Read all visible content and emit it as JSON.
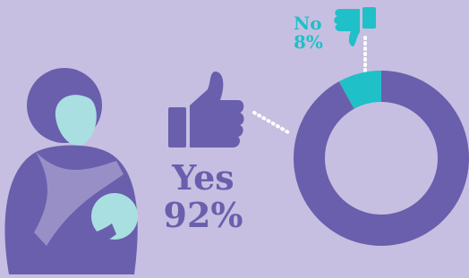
{
  "chart_data": {
    "type": "donut",
    "categories": [
      "Yes",
      "No"
    ],
    "values": [
      92,
      8
    ],
    "value_labels": [
      "92%",
      "8%"
    ],
    "colors": [
      "#6a5fad",
      "#20c0c8"
    ]
  }
}
